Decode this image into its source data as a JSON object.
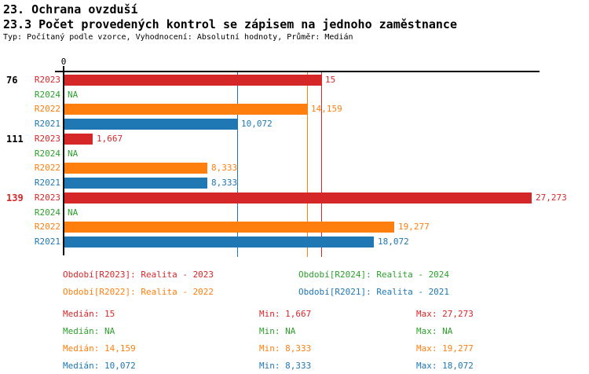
{
  "header": {
    "title1": "23. Ochrana ovzduší",
    "title2": "23.3 Počet provedených kontrol se zápisem na jednoho zaměstnance",
    "subtitle": "Typ: Počítaný podle vzorce, Vyhodnocení: Absolutní hodnoty, Průměr: Medián"
  },
  "chart_data": {
    "type": "bar",
    "orientation": "horizontal",
    "x_axis": {
      "zero_label": "0",
      "min": 0,
      "max": 27.75,
      "gridlines": false
    },
    "series": {
      "R2023": {
        "color": "#d62728"
      },
      "R2024": {
        "color": "#2ca02c"
      },
      "R2022": {
        "color": "#ff7f0e"
      },
      "R2021": {
        "color": "#1f77b4"
      }
    },
    "series_order": [
      "R2023",
      "R2024",
      "R2022",
      "R2021"
    ],
    "groups": [
      {
        "label": "76",
        "label_color": "#000000",
        "rows": [
          {
            "series": "R2023",
            "value": 15,
            "display": "15"
          },
          {
            "series": "R2024",
            "value": null,
            "display": "NA"
          },
          {
            "series": "R2022",
            "value": 14.159,
            "display": "14,159"
          },
          {
            "series": "R2021",
            "value": 10.072,
            "display": "10,072"
          }
        ]
      },
      {
        "label": "111",
        "label_color": "#000000",
        "rows": [
          {
            "series": "R2023",
            "value": 1.667,
            "display": "1,667"
          },
          {
            "series": "R2024",
            "value": null,
            "display": "NA"
          },
          {
            "series": "R2022",
            "value": 8.333,
            "display": "8,333"
          },
          {
            "series": "R2021",
            "value": 8.333,
            "display": "8,333"
          }
        ]
      },
      {
        "label": "139",
        "label_color": "#d62728",
        "rows": [
          {
            "series": "R2023",
            "value": 27.273,
            "display": "27,273"
          },
          {
            "series": "R2024",
            "value": null,
            "display": "NA"
          },
          {
            "series": "R2022",
            "value": 19.277,
            "display": "19,277"
          },
          {
            "series": "R2021",
            "value": 18.072,
            "display": "18,072"
          }
        ]
      }
    ],
    "median_lines": [
      {
        "series": "R2023",
        "value": 15
      },
      {
        "series": "R2022",
        "value": 14.159
      },
      {
        "series": "R2021",
        "value": 10.072
      }
    ]
  },
  "legend": [
    {
      "series": "R2023",
      "label": "Období[R2023]: Realita - 2023",
      "row": 0,
      "col": 0
    },
    {
      "series": "R2024",
      "label": "Období[R2024]: Realita - 2024",
      "row": 0,
      "col": 1
    },
    {
      "series": "R2022",
      "label": "Období[R2022]: Realita - 2022",
      "row": 1,
      "col": 0
    },
    {
      "series": "R2021",
      "label": "Období[R2021]: Realita - 2021",
      "row": 1,
      "col": 1
    }
  ],
  "stats": [
    {
      "series": "R2023",
      "median": "Medián: 15",
      "min": "Min: 1,667",
      "max": "Max: 27,273"
    },
    {
      "series": "R2024",
      "median": "Medián: NA",
      "min": "Min: NA",
      "max": "Max: NA"
    },
    {
      "series": "R2022",
      "median": "Medián: 14,159",
      "min": "Min: 8,333",
      "max": "Max: 19,277"
    },
    {
      "series": "R2021",
      "median": "Medián: 10,072",
      "min": "Min: 8,333",
      "max": "Max: 18,072"
    }
  ]
}
